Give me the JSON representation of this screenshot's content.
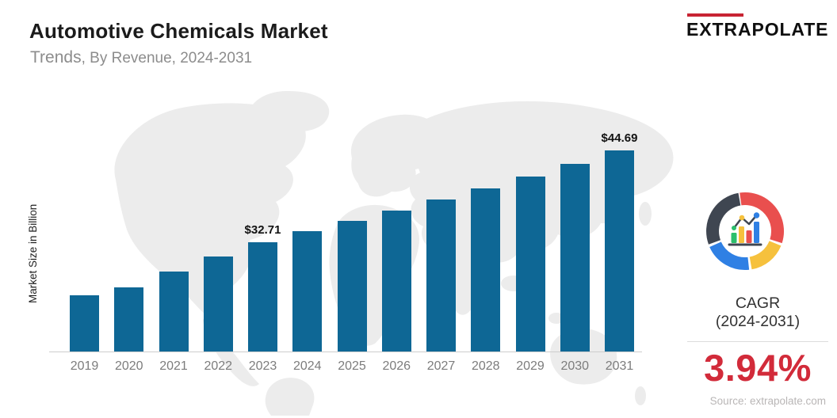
{
  "header": {
    "title": "Automotive Chemicals Market",
    "subtitle_lead": "Trends",
    "subtitle_rest": ", By Revenue, 2024-2031"
  },
  "brand": {
    "name": "EXTRAPOLATE"
  },
  "chart_data": {
    "type": "bar",
    "title": "Automotive Chemicals Market",
    "subtitle": "Trends, By Revenue, 2024-2031",
    "ylabel": "Market Size in Billion",
    "categories": [
      "2019",
      "2020",
      "2021",
      "2022",
      "2023",
      "2024",
      "2025",
      "2026",
      "2027",
      "2028",
      "2029",
      "2030",
      "2031"
    ],
    "values": [
      25.7,
      26.75,
      28.8,
      30.8,
      32.71,
      34.09,
      35.43,
      36.83,
      38.28,
      39.79,
      41.35,
      42.98,
      44.69
    ],
    "value_labels": {
      "2023": "$32.71",
      "2031": "$44.69"
    },
    "ylim": [
      18.3,
      48.9
    ],
    "grid": false,
    "legend": false,
    "background": "world-map-silhouette"
  },
  "cagr_panel": {
    "label": "CAGR",
    "range": "(2024-2031)",
    "value": "3.94%"
  },
  "source": {
    "text": "Source: extrapolate.com"
  },
  "colors": {
    "bar": "#0e6795",
    "cagr_value": "#d22b3a",
    "logo_accent": "#c82433",
    "map": "#ececec",
    "axis_line": "#cdcdcd",
    "donut": {
      "dark": "#3f4651",
      "red": "#e94f4e",
      "yellow": "#f6c13d",
      "blue": "#2f80e4",
      "green": "#2bbf6c"
    }
  }
}
